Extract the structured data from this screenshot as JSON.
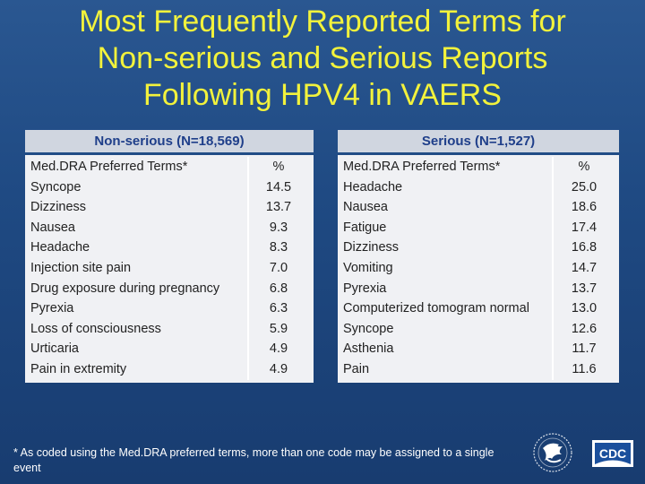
{
  "slide": {
    "title_lines": [
      "Most Frequently Reported Terms for",
      "Non-serious and Serious Reports",
      "Following HPV4 in VAERS"
    ],
    "footnote": "* As coded using the Med.DRA preferred terms, more than one code may be assigned to a single event"
  },
  "tables": {
    "non_serious": {
      "header": "Non-serious (N=18,569)",
      "col_term": "Med.DRA Preferred Terms*",
      "col_pct": "%",
      "rows": [
        {
          "term": "Syncope",
          "pct": "14.5"
        },
        {
          "term": "Dizziness",
          "pct": "13.7"
        },
        {
          "term": "Nausea",
          "pct": "9.3"
        },
        {
          "term": "Headache",
          "pct": "8.3"
        },
        {
          "term": "Injection site pain",
          "pct": "7.0"
        },
        {
          "term": "Drug exposure during pregnancy",
          "pct": "6.8"
        },
        {
          "term": "Pyrexia",
          "pct": "6.3"
        },
        {
          "term": "Loss of consciousness",
          "pct": "5.9"
        },
        {
          "term": "Urticaria",
          "pct": "4.9"
        },
        {
          "term": "Pain in extremity",
          "pct": "4.9"
        }
      ]
    },
    "serious": {
      "header": "Serious (N=1,527)",
      "col_term": "Med.DRA Preferred Terms*",
      "col_pct": "%",
      "rows": [
        {
          "term": "Headache",
          "pct": "25.0"
        },
        {
          "term": "Nausea",
          "pct": "18.6"
        },
        {
          "term": "Fatigue",
          "pct": "17.4"
        },
        {
          "term": "Dizziness",
          "pct": "16.8"
        },
        {
          "term": "Vomiting",
          "pct": "14.7"
        },
        {
          "term": "Pyrexia",
          "pct": "13.7"
        },
        {
          "term": "Computerized tomogram normal",
          "pct": "13.0"
        },
        {
          "term": "Syncope",
          "pct": "12.6"
        },
        {
          "term": "Asthenia",
          "pct": "11.7"
        },
        {
          "term": "Pain",
          "pct": "11.6"
        }
      ]
    }
  },
  "logos": {
    "cdc_text": "CDC",
    "hhs_icon": "hhs-eagle-icon"
  },
  "colors": {
    "background": "#1f4a83",
    "title": "#f2f23c",
    "header_text": "#1f3f8a"
  }
}
